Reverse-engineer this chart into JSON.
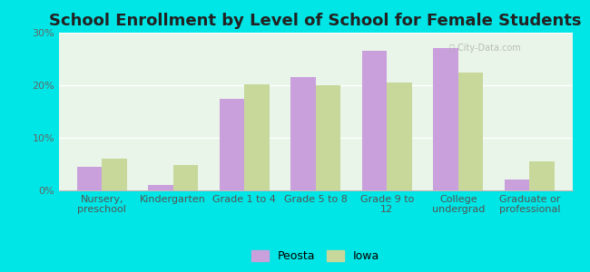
{
  "title": "School Enrollment by Level of School for Female Students",
  "categories": [
    "Nursery,\npreschool",
    "Kindergarten",
    "Grade 1 to 4",
    "Grade 5 to 8",
    "Grade 9 to\n12",
    "College\nundergrad",
    "Graduate or\nprofessional"
  ],
  "peosta": [
    4.5,
    1.0,
    17.5,
    21.5,
    26.5,
    27.0,
    2.0
  ],
  "iowa": [
    6.0,
    4.8,
    20.2,
    20.0,
    20.5,
    22.5,
    5.5
  ],
  "peosta_color": "#c9a0dc",
  "iowa_color": "#c8d89a",
  "bar_width": 0.35,
  "ylim": [
    0,
    30
  ],
  "yticks": [
    0,
    10,
    20,
    30
  ],
  "ytick_labels": [
    "0%",
    "10%",
    "20%",
    "30%"
  ],
  "legend_labels": [
    "Peosta",
    "Iowa"
  ],
  "bg_color": "#00e5e5",
  "plot_bg": "#e8f5e8",
  "title_fontsize": 13,
  "axis_fontsize": 8,
  "legend_fontsize": 9
}
